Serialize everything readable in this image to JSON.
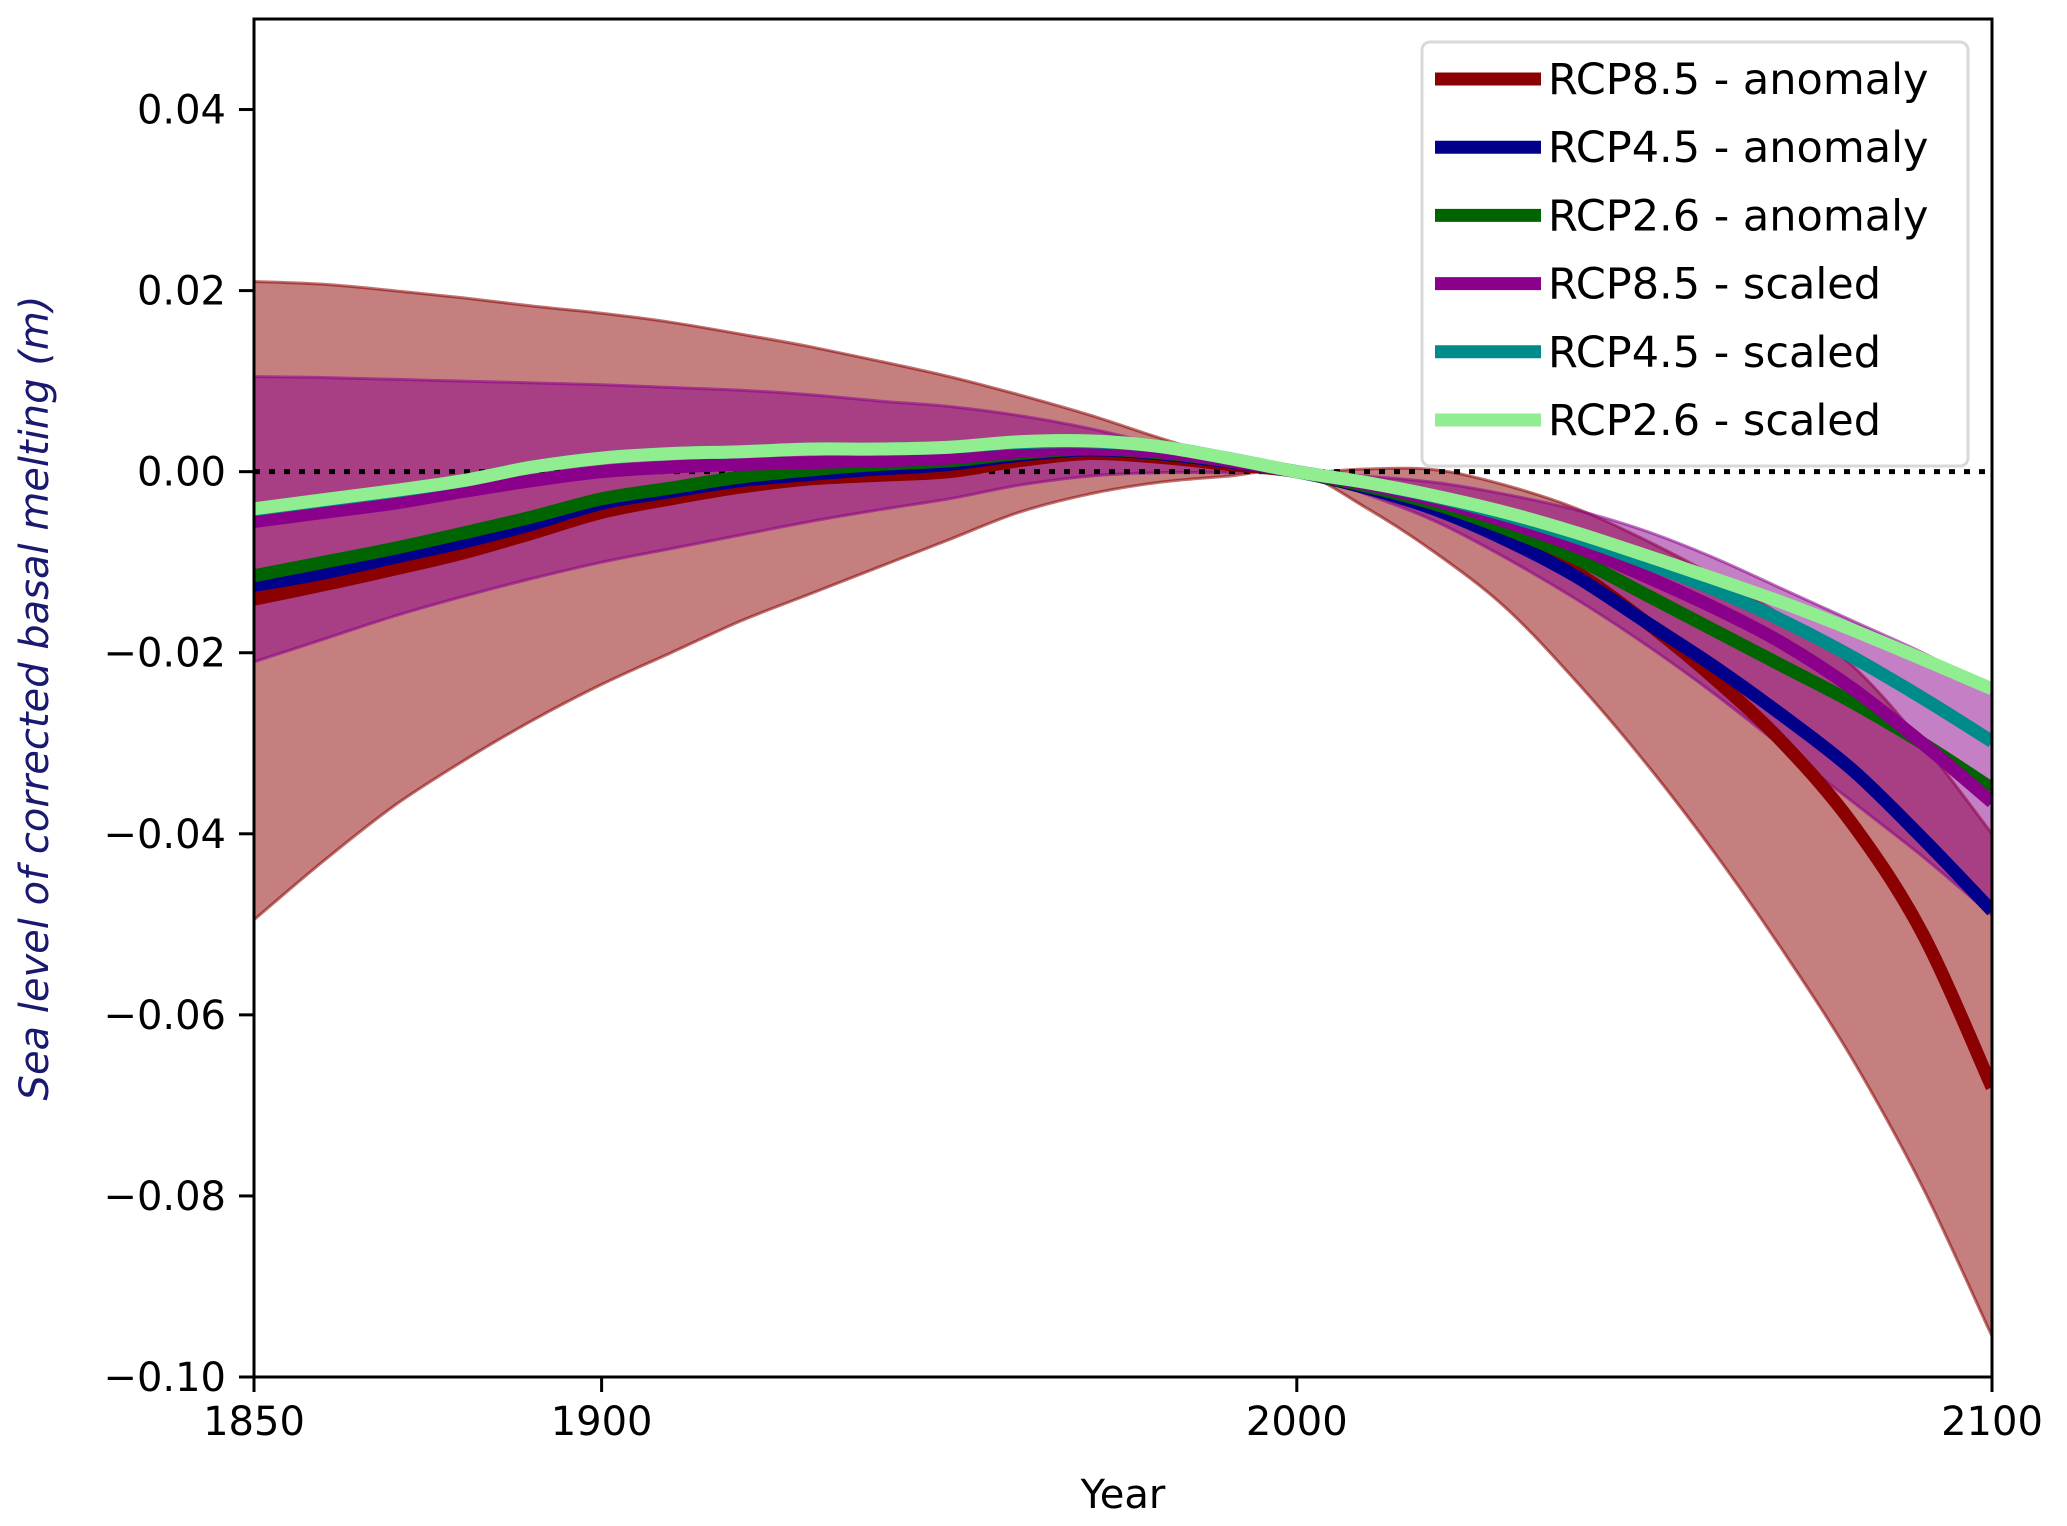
{
  "chart_data": {
    "type": "line",
    "title": "",
    "xlabel": "Year",
    "ylabel": "Sea level of corrected basal melting (m)",
    "ylabel_color": "#191970",
    "xlim": [
      1850,
      2100
    ],
    "ylim": [
      -0.1,
      0.05
    ],
    "xticks": [
      1850,
      1900,
      2000,
      2100
    ],
    "xtick_labels": [
      "1850",
      "1900",
      "2000",
      "2100"
    ],
    "yticks": [
      -0.1,
      -0.08,
      -0.06,
      -0.04,
      -0.02,
      0.0,
      0.02,
      0.04
    ],
    "ytick_labels": [
      "−0.10",
      "−0.08",
      "−0.06",
      "−0.04",
      "−0.02",
      "0.00",
      "0.02",
      "0.04"
    ],
    "grid": false,
    "reference_line": {
      "y": 0.0,
      "style": "dotted",
      "color": "#000000"
    },
    "legend": {
      "placement": "top-right"
    },
    "x": [
      1850,
      1860,
      1870,
      1880,
      1890,
      1900,
      1910,
      1920,
      1930,
      1940,
      1950,
      1960,
      1970,
      1980,
      1990,
      2000,
      2010,
      2020,
      2030,
      2040,
      2050,
      2060,
      2070,
      2080,
      2090,
      2100
    ],
    "bands": [
      {
        "name": "RCP8.5 - anomaly range",
        "color": "#8b0000",
        "opacity": 0.5,
        "upper": [
          0.021,
          0.0207,
          0.02,
          0.0192,
          0.0183,
          0.0175,
          0.0165,
          0.0152,
          0.0138,
          0.0122,
          0.0105,
          0.0085,
          0.0063,
          0.0038,
          0.0015,
          0.0,
          0.0003,
          0.0002,
          -0.0015,
          -0.004,
          -0.0075,
          -0.0115,
          -0.016,
          -0.0215,
          -0.03,
          -0.04
        ],
        "lower": [
          -0.0495,
          -0.043,
          -0.037,
          -0.032,
          -0.0275,
          -0.0235,
          -0.02,
          -0.0165,
          -0.0135,
          -0.0105,
          -0.0075,
          -0.0045,
          -0.0025,
          -0.0012,
          -0.0005,
          0.0,
          -0.004,
          -0.009,
          -0.015,
          -0.023,
          -0.032,
          -0.042,
          -0.053,
          -0.065,
          -0.079,
          -0.0955
        ]
      },
      {
        "name": "RCP8.5 - scaled range",
        "color": "#8b008b",
        "opacity": 0.5,
        "upper": [
          0.0105,
          0.0104,
          0.0102,
          0.01,
          0.0098,
          0.0096,
          0.0093,
          0.009,
          0.0085,
          0.0078,
          0.0072,
          0.0062,
          0.0048,
          0.003,
          0.0012,
          0.0,
          -0.0005,
          -0.0012,
          -0.0025,
          -0.0042,
          -0.0065,
          -0.0095,
          -0.013,
          -0.0165,
          -0.02,
          -0.024
        ],
        "lower": [
          -0.021,
          -0.0185,
          -0.016,
          -0.0138,
          -0.0118,
          -0.01,
          -0.0085,
          -0.007,
          -0.0055,
          -0.0042,
          -0.003,
          -0.0015,
          -0.0005,
          -0.0001,
          -0.0001,
          0.0,
          -0.0025,
          -0.0055,
          -0.0095,
          -0.014,
          -0.019,
          -0.0245,
          -0.0305,
          -0.0365,
          -0.0425,
          -0.049
        ]
      }
    ],
    "series": [
      {
        "name": "RCP8.5 - anomaly",
        "color": "#8b0000",
        "values": [
          -0.0141,
          -0.0125,
          -0.0108,
          -0.009,
          -0.0068,
          -0.0045,
          -0.003,
          -0.0017,
          -0.0008,
          -0.0004,
          0.0,
          0.0012,
          0.002,
          0.0016,
          0.0008,
          0.0,
          -0.0018,
          -0.004,
          -0.007,
          -0.011,
          -0.0165,
          -0.0228,
          -0.03,
          -0.039,
          -0.051,
          -0.068
        ]
      },
      {
        "name": "RCP4.5 - anomaly",
        "color": "#00008b",
        "values": [
          -0.0126,
          -0.0112,
          -0.0095,
          -0.0078,
          -0.0058,
          -0.0035,
          -0.0022,
          -0.001,
          -0.0003,
          0.0003,
          0.0008,
          0.0018,
          0.0024,
          0.002,
          0.0011,
          0.0,
          -0.0018,
          -0.0042,
          -0.0075,
          -0.0115,
          -0.0165,
          -0.0215,
          -0.027,
          -0.033,
          -0.0405,
          -0.0485
        ]
      },
      {
        "name": "RCP2.6 - anomaly",
        "color": "#006400",
        "values": [
          -0.0115,
          -0.01,
          -0.0085,
          -0.0068,
          -0.005,
          -0.003,
          -0.0018,
          -0.0006,
          0.0002,
          0.0008,
          0.0012,
          0.002,
          0.0025,
          0.0021,
          0.0012,
          0.0,
          -0.0016,
          -0.0036,
          -0.0063,
          -0.0095,
          -0.0135,
          -0.0175,
          -0.0215,
          -0.0255,
          -0.03,
          -0.035
        ]
      },
      {
        "name": "RCP8.5 - scaled",
        "color": "#8b008b",
        "values": [
          -0.0055,
          -0.0045,
          -0.0035,
          -0.0022,
          -0.001,
          0.0,
          0.0005,
          0.0008,
          0.001,
          0.0012,
          0.0015,
          0.0022,
          0.0025,
          0.0022,
          0.0012,
          0.0,
          -0.0014,
          -0.0032,
          -0.0055,
          -0.0082,
          -0.0115,
          -0.015,
          -0.019,
          -0.024,
          -0.03,
          -0.0365
        ]
      },
      {
        "name": "RCP4.5 - scaled",
        "color": "#008b8b",
        "values": [
          -0.0042,
          -0.0032,
          -0.0022,
          -0.001,
          0.0005,
          0.0015,
          0.002,
          0.0022,
          0.0025,
          0.0025,
          0.0027,
          0.0032,
          0.0033,
          0.0028,
          0.0015,
          0.0,
          -0.0012,
          -0.0028,
          -0.0048,
          -0.0072,
          -0.01,
          -0.013,
          -0.0165,
          -0.0205,
          -0.025,
          -0.0298
        ]
      },
      {
        "name": "RCP2.6 - scaled",
        "color": "#90ee90",
        "values": [
          -0.0041,
          -0.0031,
          -0.0021,
          -0.001,
          0.0005,
          0.0015,
          0.002,
          0.0022,
          0.0025,
          0.0025,
          0.0027,
          0.0033,
          0.0034,
          0.0028,
          0.0015,
          0.0,
          -0.0012,
          -0.0027,
          -0.0045,
          -0.0067,
          -0.0092,
          -0.0118,
          -0.0145,
          -0.0175,
          -0.0207,
          -0.024
        ]
      }
    ]
  }
}
